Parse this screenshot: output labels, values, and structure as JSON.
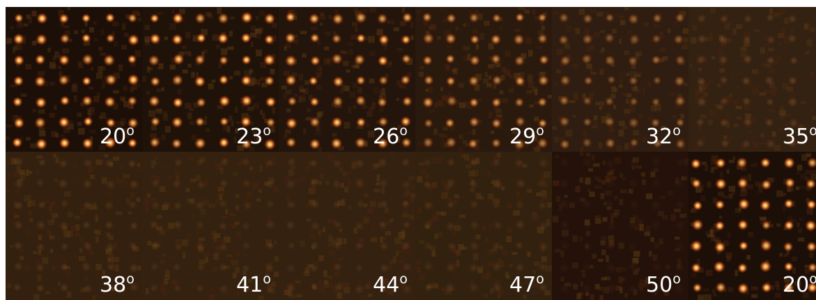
{
  "panels": [
    {
      "label": "20",
      "sup": "o"
    },
    {
      "label": "23",
      "sup": "o"
    },
    {
      "label": "26",
      "sup": "o"
    },
    {
      "label": "29",
      "sup": "o"
    },
    {
      "label": "32",
      "sup": "o"
    },
    {
      "label": "35",
      "sup": "o"
    },
    {
      "label": "38",
      "sup": "o"
    },
    {
      "label": "41",
      "sup": "o"
    },
    {
      "label": "44",
      "sup": "o"
    },
    {
      "label": "47",
      "sup": "o"
    },
    {
      "label": "50",
      "sup": "o"
    },
    {
      "label": "20",
      "sup": "o"
    }
  ]
}
